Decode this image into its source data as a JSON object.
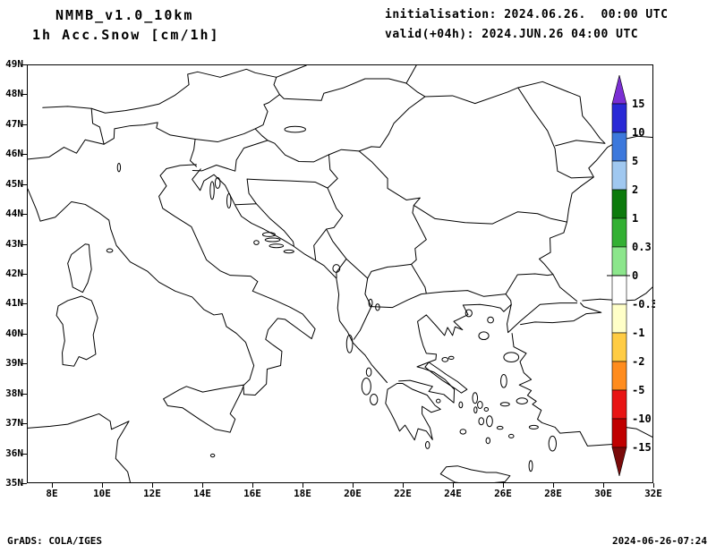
{
  "header": {
    "model": "NMMB_v1.0_10km",
    "field": "1h Acc.Snow [cm/1h]",
    "init": "initialisation: 2024.06.26.  00:00 UTC",
    "valid": "valid(+04h): 2024.JUN.26 04:00 UTC"
  },
  "map": {
    "lat_labels": [
      "49N",
      "48N",
      "47N",
      "46N",
      "45N",
      "44N",
      "43N",
      "42N",
      "41N",
      "40N",
      "39N",
      "38N",
      "37N",
      "36N",
      "35N"
    ],
    "lon_labels": [
      "8E",
      "10E",
      "12E",
      "14E",
      "16E",
      "18E",
      "20E",
      "22E",
      "24E",
      "26E",
      "28E",
      "30E",
      "32E"
    ]
  },
  "colorbar": {
    "labels": [
      "15",
      "10",
      "5",
      "2",
      "1",
      "0.3",
      "0",
      "-0.3",
      "-1",
      "-2",
      "-5",
      "-10",
      "-15"
    ],
    "segment_colors": [
      "#2929d6",
      "#3c78dc",
      "#a0c8f0",
      "#0c7a0c",
      "#33b033",
      "#8ce68c",
      "#ffffff",
      "#ffffc8",
      "#ffcc44",
      "#ff8c1e",
      "#e81414",
      "#c00000"
    ],
    "arrow_top_color": "#7b2fd4",
    "arrow_bottom_color": "#7a0a0a"
  },
  "footer": {
    "credit": "GrADS: COLA/IGES",
    "timestamp": "2024-06-26-07:24"
  },
  "colors": {
    "background": "#ffffff",
    "line": "#000000"
  }
}
